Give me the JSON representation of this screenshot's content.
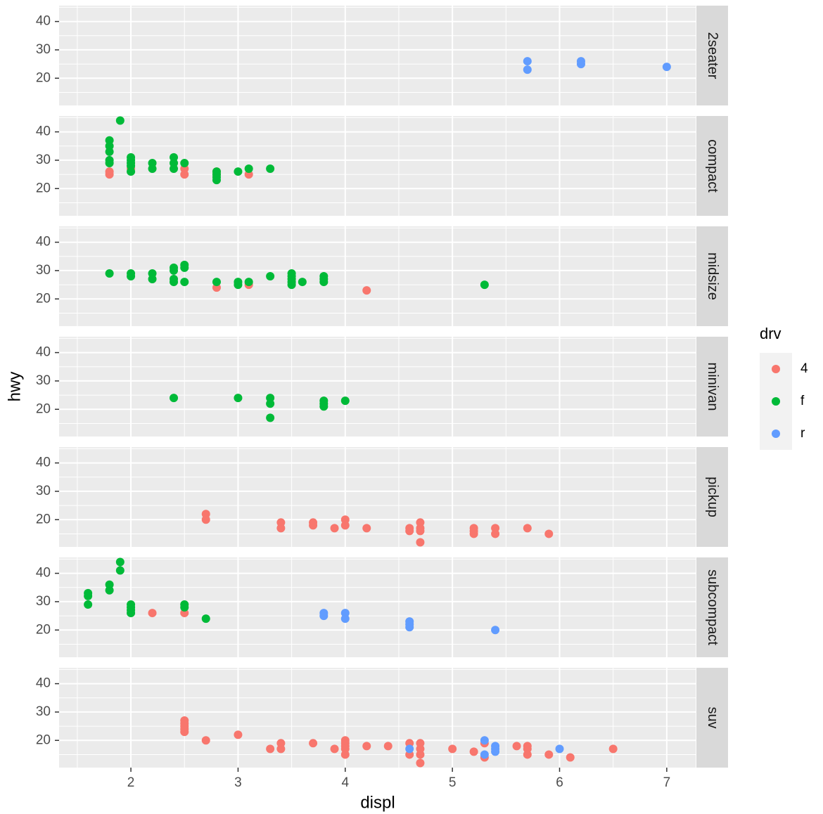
{
  "chart_data": {
    "type": "scatter",
    "xlabel": "displ",
    "ylabel": "hwy",
    "legend_title": "drv",
    "legend_position": "right",
    "grid": true,
    "xlim": [
      1.33,
      7.27
    ],
    "ylim": [
      10.4,
      45.6
    ],
    "xticks": [
      2,
      3,
      4,
      5,
      6,
      7
    ],
    "yticks": [
      20,
      30,
      40
    ],
    "facets": [
      {
        "label": "2seater",
        "series": [
          {
            "name": "4",
            "color": "#F8766D",
            "x": [],
            "values": []
          },
          {
            "name": "f",
            "color": "#00BA38",
            "x": [],
            "values": []
          },
          {
            "name": "r",
            "color": "#619CFF",
            "x": [
              5.7,
              5.7,
              6.2,
              6.2,
              7
            ],
            "values": [
              26,
              23,
              26,
              25,
              24
            ]
          }
        ]
      },
      {
        "label": "compact",
        "series": [
          {
            "name": "4",
            "color": "#F8766D",
            "x": [
              1.8,
              1.8,
              2,
              2.5,
              2.5,
              2.8,
              2.8,
              3.1
            ],
            "values": [
              26,
              25,
              27,
              27,
              25,
              25,
              26,
              25
            ]
          },
          {
            "name": "f",
            "color": "#00BA38",
            "x": [
              1.8,
              1.8,
              1.8,
              1.8,
              1.8,
              1.9,
              2,
              2,
              2,
              2,
              2,
              2.2,
              2.2,
              2.4,
              2.4,
              2.4,
              2.5,
              2.8,
              2.8,
              2.8,
              2.8,
              3,
              3.1,
              3.3
            ],
            "values": [
              37,
              35,
              33,
              30,
              29,
              44,
              31,
              30,
              29,
              28,
              26,
              29,
              27,
              31,
              29,
              27,
              29,
              26,
              24,
              23,
              25,
              26,
              27,
              27
            ]
          },
          {
            "name": "r",
            "color": "#619CFF",
            "x": [],
            "values": []
          }
        ]
      },
      {
        "label": "midsize",
        "series": [
          {
            "name": "4",
            "color": "#F8766D",
            "x": [
              2.8,
              3.1,
              4.2
            ],
            "values": [
              24,
              25,
              23
            ]
          },
          {
            "name": "f",
            "color": "#00BA38",
            "x": [
              1.8,
              2,
              2,
              2.2,
              2.2,
              2.4,
              2.4,
              2.4,
              2.4,
              2.5,
              2.5,
              2.5,
              2.8,
              3,
              3,
              3.1,
              3.3,
              3.5,
              3.5,
              3.5,
              3.5,
              3.5,
              3.6,
              3.8,
              3.8,
              3.8,
              5.3
            ],
            "values": [
              29,
              29,
              28,
              29,
              27,
              31,
              30,
              27,
              26,
              32,
              31,
              26,
              26,
              26,
              25,
              26,
              28,
              29,
              28,
              27,
              26,
              25,
              26,
              28,
              27,
              26,
              25
            ]
          },
          {
            "name": "r",
            "color": "#619CFF",
            "x": [],
            "values": []
          }
        ]
      },
      {
        "label": "minivan",
        "series": [
          {
            "name": "4",
            "color": "#F8766D",
            "x": [],
            "values": []
          },
          {
            "name": "f",
            "color": "#00BA38",
            "x": [
              2.4,
              3,
              3.3,
              3.3,
              3.3,
              3.8,
              3.8,
              3.8,
              4
            ],
            "values": [
              24,
              24,
              24,
              22,
              17,
              23,
              22,
              21,
              23
            ]
          },
          {
            "name": "r",
            "color": "#619CFF",
            "x": [],
            "values": []
          }
        ]
      },
      {
        "label": "pickup",
        "series": [
          {
            "name": "4",
            "color": "#F8766D",
            "x": [
              2.7,
              2.7,
              3.4,
              3.4,
              3.7,
              3.7,
              3.9,
              4,
              4,
              4.2,
              4.6,
              4.6,
              4.7,
              4.7,
              4.7,
              4.7,
              5.2,
              5.2,
              5.2,
              5.4,
              5.4,
              5.7,
              5.9
            ],
            "values": [
              22,
              20,
              19,
              17,
              19,
              18,
              17,
              20,
              18,
              17,
              17,
              16,
              19,
              17,
              16,
              12,
              17,
              16,
              15,
              17,
              15,
              17,
              15
            ]
          },
          {
            "name": "f",
            "color": "#00BA38",
            "x": [],
            "values": []
          },
          {
            "name": "r",
            "color": "#619CFF",
            "x": [],
            "values": []
          }
        ]
      },
      {
        "label": "subcompact",
        "series": [
          {
            "name": "4",
            "color": "#F8766D",
            "x": [
              2.2,
              2.5
            ],
            "values": [
              26,
              26
            ]
          },
          {
            "name": "f",
            "color": "#00BA38",
            "x": [
              1.6,
              1.6,
              1.6,
              1.8,
              1.8,
              1.9,
              1.9,
              2,
              2,
              2,
              2,
              2.5,
              2.5,
              2.7
            ],
            "values": [
              33,
              32,
              29,
              36,
              34,
              44,
              41,
              29,
              28,
              27,
              26,
              29,
              28,
              24
            ]
          },
          {
            "name": "r",
            "color": "#619CFF",
            "x": [
              3.8,
              3.8,
              4,
              4,
              4.6,
              4.6,
              4.6,
              5.4
            ],
            "values": [
              26,
              25,
              26,
              24,
              23,
              22,
              21,
              20
            ]
          }
        ]
      },
      {
        "label": "suv",
        "series": [
          {
            "name": "4",
            "color": "#F8766D",
            "x": [
              2.5,
              2.5,
              2.5,
              2.5,
              2.5,
              2.7,
              3,
              3.3,
              3.4,
              3.4,
              3.7,
              3.9,
              4,
              4,
              4,
              4,
              4,
              4.2,
              4.4,
              4.6,
              4.6,
              4.7,
              4.7,
              4.7,
              4.7,
              5,
              5.2,
              5.3,
              5.3,
              5.6,
              5.7,
              5.7,
              5.7,
              5.9,
              6.1,
              6.5
            ],
            "values": [
              27,
              26,
              25,
              24,
              23,
              20,
              22,
              17,
              19,
              17,
              19,
              17,
              20,
              19,
              18,
              17,
              15,
              18,
              18,
              19,
              15,
              19,
              17,
              15,
              12,
              17,
              16,
              19,
              14,
              18,
              18,
              17,
              15,
              15,
              14,
              17
            ]
          },
          {
            "name": "f",
            "color": "#00BA38",
            "x": [],
            "values": []
          },
          {
            "name": "r",
            "color": "#619CFF",
            "x": [
              4.6,
              5.3,
              5.3,
              5.4,
              5.4,
              5.4,
              6
            ],
            "values": [
              17,
              20,
              15,
              18,
              17,
              16,
              17
            ]
          }
        ]
      }
    ]
  }
}
